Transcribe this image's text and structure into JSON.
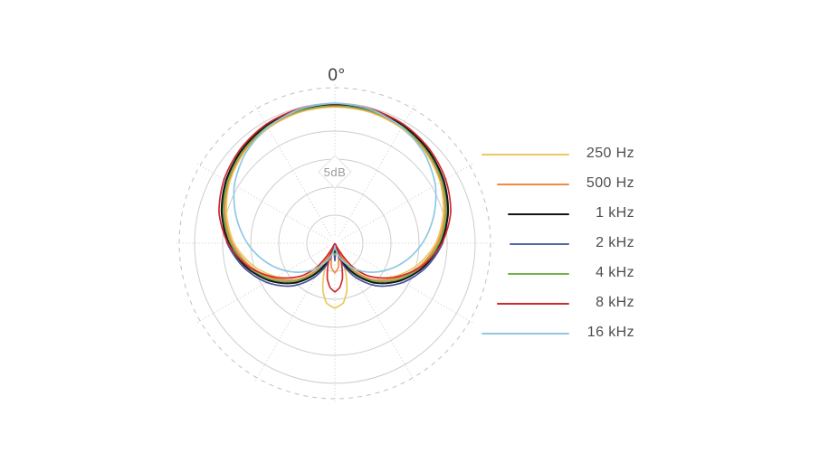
{
  "chart_data": {
    "type": "polar-line",
    "description": "Microphone cardioid polar pattern at seven frequencies",
    "angle_label_top": "0°",
    "radial_axis_label": "5dB",
    "radial_ring_step_db": 5,
    "solid_rings": 5,
    "outer_ring_style": "dashed",
    "spoke_step_deg": 30,
    "db_at_center_relative_to_peak": -25,
    "series": [
      {
        "name": "250 Hz",
        "color": "#ecc763",
        "response_deg_db": [
          [
            0,
            -0.7
          ],
          [
            15,
            -0.8
          ],
          [
            30,
            -1.3
          ],
          [
            45,
            -2.1
          ],
          [
            60,
            -3.3
          ],
          [
            75,
            -5.0
          ],
          [
            90,
            -7.0
          ],
          [
            105,
            -9.8
          ],
          [
            120,
            -13.0
          ],
          [
            135,
            -16.8
          ],
          [
            144,
            -20.1
          ],
          [
            152,
            -24.8
          ],
          [
            158,
            -20.3
          ],
          [
            166,
            -16.2
          ],
          [
            172,
            -14.2
          ],
          [
            180,
            -13.4
          ]
        ]
      },
      {
        "name": "500 Hz",
        "color": "#f08b41",
        "response_deg_db": [
          [
            0,
            -0.55
          ],
          [
            15,
            -0.65
          ],
          [
            30,
            -1.1
          ],
          [
            45,
            -1.9
          ],
          [
            60,
            -3.1
          ],
          [
            75,
            -4.7
          ],
          [
            90,
            -6.7
          ],
          [
            105,
            -9.3
          ],
          [
            120,
            -12.4
          ],
          [
            135,
            -15.9
          ],
          [
            150,
            -20.6
          ],
          [
            158,
            -24.8
          ],
          [
            166,
            -22.4
          ],
          [
            172,
            -20.6
          ],
          [
            180,
            -19.7
          ]
        ]
      },
      {
        "name": "1 kHz",
        "color": "#151515",
        "response_deg_db": [
          [
            0,
            -0.2
          ],
          [
            15,
            -0.3
          ],
          [
            30,
            -0.7
          ],
          [
            45,
            -1.5
          ],
          [
            60,
            -2.6
          ],
          [
            75,
            -4.1
          ],
          [
            90,
            -6.1
          ],
          [
            105,
            -8.6
          ],
          [
            120,
            -11.6
          ],
          [
            135,
            -15.0
          ],
          [
            150,
            -19.2
          ],
          [
            160,
            -22.3
          ],
          [
            168,
            -24.6
          ],
          [
            174,
            -24.4
          ],
          [
            180,
            -23.4
          ]
        ]
      },
      {
        "name": "2 kHz",
        "color": "#47539f",
        "response_deg_db": [
          [
            0,
            -0.35
          ],
          [
            15,
            -0.45
          ],
          [
            30,
            -0.85
          ],
          [
            45,
            -1.65
          ],
          [
            60,
            -2.8
          ],
          [
            75,
            -4.3
          ],
          [
            90,
            -5.8
          ],
          [
            105,
            -8.2
          ],
          [
            120,
            -11.0
          ],
          [
            135,
            -14.2
          ],
          [
            150,
            -18.2
          ],
          [
            160,
            -21.2
          ],
          [
            168,
            -23.8
          ],
          [
            174,
            -24.3
          ],
          [
            180,
            -21.9
          ]
        ]
      },
      {
        "name": "4 kHz",
        "color": "#74b34b",
        "response_deg_db": [
          [
            0,
            -0.45
          ],
          [
            15,
            -0.55
          ],
          [
            30,
            -0.95
          ],
          [
            45,
            -1.75
          ],
          [
            60,
            -2.95
          ],
          [
            75,
            -4.45
          ],
          [
            90,
            -6.4
          ],
          [
            105,
            -9.0
          ],
          [
            120,
            -12.0
          ],
          [
            135,
            -15.5
          ],
          [
            150,
            -19.8
          ],
          [
            160,
            -22.8
          ],
          [
            168,
            -24.7
          ],
          [
            174,
            -24.5
          ],
          [
            180,
            -22.9
          ]
        ]
      },
      {
        "name": "8 kHz",
        "color": "#d02a2e",
        "response_deg_db": [
          [
            0,
            -0.1
          ],
          [
            15,
            -0.2
          ],
          [
            30,
            -0.5
          ],
          [
            45,
            -1.2
          ],
          [
            60,
            -2.2
          ],
          [
            75,
            -3.6
          ],
          [
            90,
            -5.9
          ],
          [
            105,
            -9.0
          ],
          [
            120,
            -12.8
          ],
          [
            135,
            -16.8
          ],
          [
            144,
            -20.0
          ],
          [
            150,
            -23.3
          ],
          [
            154,
            -24.9
          ],
          [
            160,
            -22.0
          ],
          [
            168,
            -18.5
          ],
          [
            174,
            -17.0
          ],
          [
            180,
            -16.3
          ]
        ]
      },
      {
        "name": "16 kHz",
        "color": "#8ec8e3",
        "response_deg_db": [
          [
            0,
            0
          ],
          [
            15,
            -0.3
          ],
          [
            30,
            -1.1
          ],
          [
            45,
            -2.4
          ],
          [
            60,
            -4.3
          ],
          [
            75,
            -6.8
          ],
          [
            90,
            -9.4
          ],
          [
            105,
            -12.2
          ],
          [
            120,
            -15.1
          ],
          [
            135,
            -17.9
          ],
          [
            150,
            -20.6
          ],
          [
            160,
            -22.2
          ],
          [
            170,
            -23.6
          ],
          [
            180,
            -24.5
          ]
        ]
      }
    ]
  },
  "legend": {
    "items": [
      {
        "label": "250 Hz",
        "color": "#ecc763",
        "line_length": 97
      },
      {
        "label": "500 Hz",
        "color": "#f08b41",
        "line_length": 80
      },
      {
        "label": "1 kHz",
        "color": "#151515",
        "line_length": 68
      },
      {
        "label": "2 kHz",
        "color": "#5565ab",
        "line_length": 66
      },
      {
        "label": "4 kHz",
        "color": "#74b34b",
        "line_length": 68
      },
      {
        "label": "8 kHz",
        "color": "#d02a2e",
        "line_length": 80
      },
      {
        "label": "16 kHz",
        "color": "#8ec8e3",
        "line_length": 97
      }
    ]
  }
}
